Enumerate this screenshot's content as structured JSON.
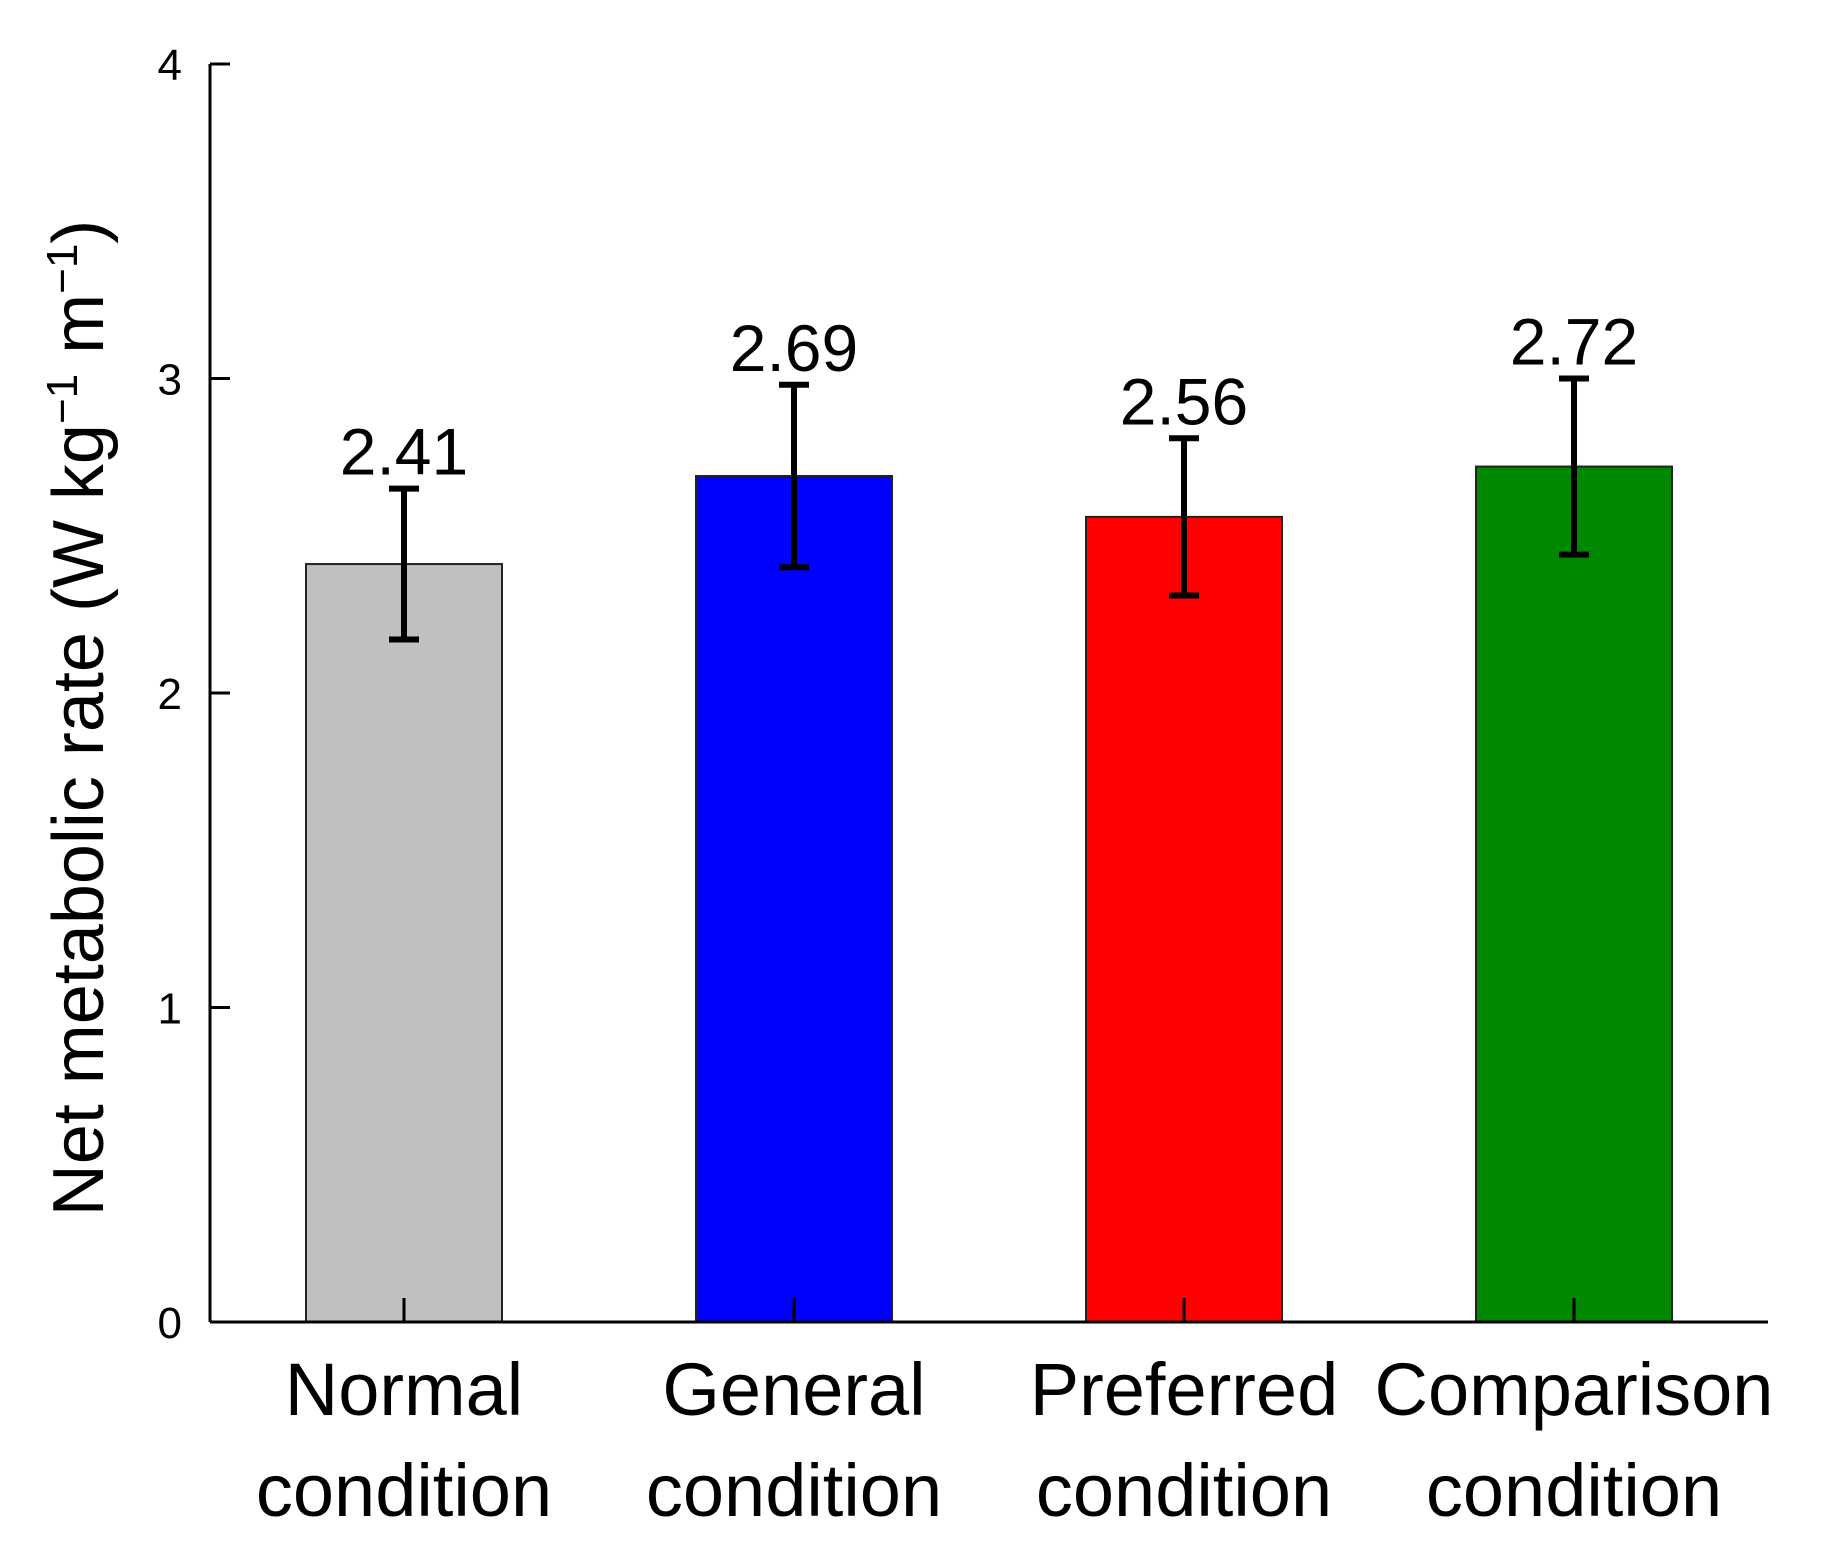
{
  "chart_data": {
    "type": "bar",
    "title": "",
    "xlabel": "",
    "ylabel": "Net metabolic rate (W kg",
    "ylabel_sup1": "−1",
    "ylabel_mid": " m",
    "ylabel_sup2": "−1",
    "ylabel_end": ")",
    "ylim": [
      0,
      4
    ],
    "yticks": [
      "0",
      "1",
      "2",
      "3",
      "4"
    ],
    "categories": [
      {
        "line1": "Normal",
        "line2": "condition"
      },
      {
        "line1": "General",
        "line2": "condition"
      },
      {
        "line1": "Preferred",
        "line2": "condition"
      },
      {
        "line1": "Comparison",
        "line2": "condition"
      }
    ],
    "values": [
      2.41,
      2.69,
      2.56,
      2.72
    ],
    "labels": [
      "2.41",
      "2.69",
      "2.56",
      "2.72"
    ],
    "error": [
      0.24,
      0.29,
      0.25,
      0.28
    ],
    "colors": [
      "#c0c0c0",
      "#0000ff",
      "#ff0000",
      "#008800"
    ],
    "grid": false,
    "legend": "none"
  }
}
